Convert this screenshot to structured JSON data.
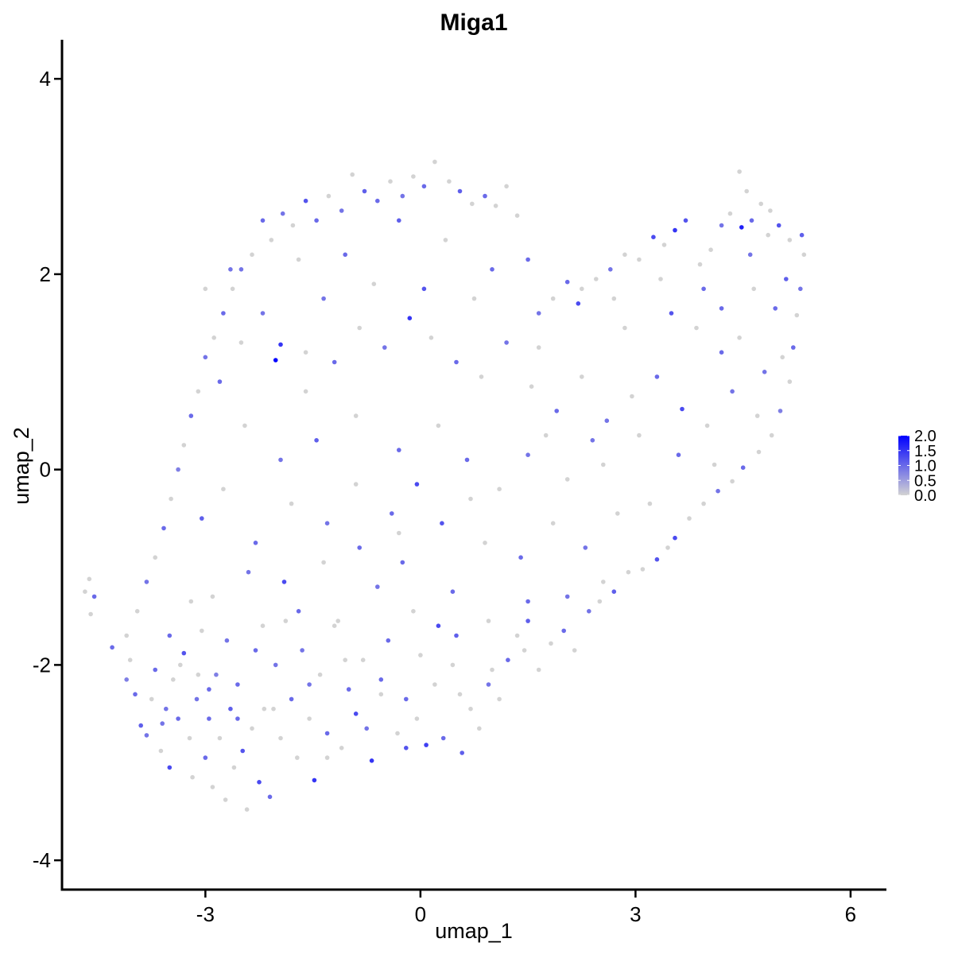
{
  "chart_data": {
    "type": "scatter",
    "title": "Miga1",
    "xlabel": "umap_1",
    "ylabel": "umap_2",
    "xlim": [
      -5.0,
      6.5
    ],
    "ylim": [
      -4.3,
      4.4
    ],
    "xticks": [
      -3,
      0,
      3,
      6
    ],
    "yticks": [
      -4,
      -2,
      0,
      2,
      4
    ],
    "xtick_labels": [
      "-3",
      "0",
      "3",
      "6"
    ],
    "ytick_labels": [
      "-4",
      "-2",
      "0",
      "2",
      "4"
    ],
    "grid": false,
    "legend": {
      "placement": "right",
      "title": "",
      "breaks": [
        0.0,
        0.5,
        1.0,
        1.5,
        2.0
      ],
      "break_labels": [
        "0.0",
        "0.5",
        "1.0",
        "1.5",
        "2.0"
      ],
      "range": [
        0.0,
        2.0
      ]
    },
    "color_low": "#D3D3D3",
    "color_high": "#0000FF",
    "points": [
      [
        -4.68,
        -1.25,
        0.0
      ],
      [
        -4.62,
        -1.12,
        0.0
      ],
      [
        -4.55,
        -1.3,
        1.0
      ],
      [
        -4.6,
        -1.48,
        0.0
      ],
      [
        -4.3,
        -1.82,
        1.0
      ],
      [
        -4.1,
        -2.15,
        0.8
      ],
      [
        -4.05,
        -1.95,
        0.0
      ],
      [
        -3.98,
        -2.3,
        1.0
      ],
      [
        -3.9,
        -2.62,
        1.1
      ],
      [
        -3.82,
        -2.72,
        0.9
      ],
      [
        -3.75,
        -2.35,
        0.0
      ],
      [
        -3.7,
        -2.05,
        1.0
      ],
      [
        -3.62,
        -2.88,
        0.0
      ],
      [
        -3.55,
        -2.45,
        0.9
      ],
      [
        -3.5,
        -3.05,
        1.3
      ],
      [
        -3.45,
        -2.15,
        0.0
      ],
      [
        -3.38,
        -2.55,
        1.0
      ],
      [
        -3.3,
        -1.88,
        1.2
      ],
      [
        -3.22,
        -2.75,
        0.0
      ],
      [
        -3.18,
        -3.15,
        0.0
      ],
      [
        -3.12,
        -2.35,
        0.9
      ],
      [
        -3.05,
        -1.65,
        0.0
      ],
      [
        -3.0,
        -2.95,
        1.0
      ],
      [
        -2.95,
        -2.55,
        1.0
      ],
      [
        -2.9,
        -3.25,
        0.0
      ],
      [
        -2.85,
        -2.1,
        0.8
      ],
      [
        -2.8,
        -2.75,
        0.0
      ],
      [
        -2.72,
        -3.38,
        0.0
      ],
      [
        -2.65,
        -2.45,
        1.1
      ],
      [
        -2.6,
        -3.05,
        0.0
      ],
      [
        -2.55,
        -2.2,
        1.0
      ],
      [
        -2.48,
        -2.88,
        1.2
      ],
      [
        -2.42,
        -3.48,
        0.0
      ],
      [
        -2.35,
        -2.65,
        0.0
      ],
      [
        -2.3,
        -1.85,
        1.0
      ],
      [
        -2.25,
        -3.2,
        1.3
      ],
      [
        -2.18,
        -2.45,
        0.0
      ],
      [
        -2.1,
        -3.35,
        1.0
      ],
      [
        -2.02,
        -2.0,
        0.9
      ],
      [
        -1.95,
        -2.75,
        0.0
      ],
      [
        -1.88,
        -1.55,
        0.0
      ],
      [
        -1.8,
        -2.35,
        1.0
      ],
      [
        -1.72,
        -2.95,
        0.0
      ],
      [
        -1.65,
        -1.85,
        0.9
      ],
      [
        -1.55,
        -2.55,
        0.0
      ],
      [
        -1.48,
        -3.18,
        1.5
      ],
      [
        -1.4,
        -2.1,
        0.0
      ],
      [
        -1.3,
        -2.7,
        1.0
      ],
      [
        -1.2,
        -1.6,
        0.0
      ],
      [
        -1.1,
        -2.85,
        0.0
      ],
      [
        -1.0,
        -2.25,
        1.0
      ],
      [
        -0.9,
        -2.5,
        1.3
      ],
      [
        -0.8,
        -1.95,
        0.0
      ],
      [
        -0.68,
        -2.98,
        1.5
      ],
      [
        -0.55,
        -2.3,
        0.0
      ],
      [
        -0.45,
        -1.75,
        1.0
      ],
      [
        -0.32,
        -2.7,
        0.0
      ],
      [
        -0.2,
        -2.85,
        1.2
      ],
      [
        -0.05,
        -2.55,
        0.0
      ],
      [
        0.08,
        -2.82,
        1.4
      ],
      [
        0.2,
        -2.2,
        0.0
      ],
      [
        0.32,
        -2.75,
        1.0
      ],
      [
        0.45,
        -2.0,
        0.0
      ],
      [
        0.58,
        -2.9,
        1.1
      ],
      [
        0.7,
        -2.45,
        0.0
      ],
      [
        0.82,
        -2.65,
        0.0
      ],
      [
        0.95,
        -2.2,
        0.9
      ],
      [
        1.1,
        -2.35,
        0.0
      ],
      [
        1.22,
        -1.95,
        1.0
      ],
      [
        1.35,
        -1.7,
        0.0
      ],
      [
        1.5,
        -1.55,
        1.1
      ],
      [
        1.65,
        -2.05,
        0.0
      ],
      [
        1.82,
        -1.78,
        0.0
      ],
      [
        2.0,
        -1.65,
        1.0
      ],
      [
        2.15,
        -1.85,
        0.0
      ],
      [
        2.35,
        -1.45,
        0.9
      ],
      [
        2.5,
        -1.35,
        0.0
      ],
      [
        2.7,
        -1.25,
        1.1
      ],
      [
        2.9,
        -1.05,
        0.0
      ],
      [
        3.1,
        -1.02,
        0.0
      ],
      [
        3.3,
        -0.92,
        1.2
      ],
      [
        3.45,
        -0.8,
        0.0
      ],
      [
        3.55,
        -0.7,
        1.3
      ],
      [
        3.75,
        -0.5,
        0.0
      ],
      [
        3.95,
        -0.35,
        0.0
      ],
      [
        4.15,
        -0.22,
        0.9
      ],
      [
        4.35,
        -0.12,
        0.0
      ],
      [
        4.5,
        0.02,
        1.0
      ],
      [
        4.72,
        0.18,
        0.0
      ],
      [
        4.9,
        0.35,
        0.0
      ],
      [
        5.02,
        0.6,
        0.8
      ],
      [
        5.15,
        0.9,
        0.0
      ],
      [
        5.2,
        1.25,
        1.0
      ],
      [
        5.25,
        1.58,
        0.0
      ],
      [
        5.3,
        1.85,
        0.9
      ],
      [
        5.35,
        2.2,
        0.0
      ],
      [
        5.32,
        2.4,
        1.1
      ],
      [
        5.15,
        2.35,
        0.0
      ],
      [
        5.0,
        2.5,
        1.2
      ],
      [
        4.88,
        2.65,
        0.0
      ],
      [
        4.75,
        2.72,
        0.0
      ],
      [
        4.62,
        2.55,
        1.0
      ],
      [
        4.55,
        2.85,
        0.0
      ],
      [
        4.48,
        2.48,
        1.7
      ],
      [
        4.45,
        3.05,
        0.0
      ],
      [
        4.32,
        2.62,
        0.0
      ],
      [
        4.2,
        2.5,
        0.9
      ],
      [
        4.05,
        2.25,
        0.0
      ],
      [
        3.9,
        2.1,
        0.0
      ],
      [
        3.7,
        2.55,
        1.2
      ],
      [
        3.55,
        2.45,
        1.5
      ],
      [
        3.4,
        2.3,
        0.0
      ],
      [
        3.25,
        2.38,
        1.3
      ],
      [
        3.05,
        2.15,
        0.0
      ],
      [
        2.85,
        2.2,
        0.0
      ],
      [
        2.65,
        2.05,
        0.9
      ],
      [
        2.45,
        1.95,
        0.0
      ],
      [
        2.25,
        1.85,
        0.0
      ],
      [
        2.05,
        1.92,
        1.0
      ],
      [
        1.85,
        1.75,
        0.0
      ],
      [
        1.65,
        1.6,
        0.9
      ],
      [
        1.5,
        2.15,
        1.0
      ],
      [
        1.35,
        2.6,
        0.0
      ],
      [
        1.2,
        2.9,
        0.0
      ],
      [
        1.05,
        2.7,
        0.0
      ],
      [
        0.9,
        2.8,
        1.0
      ],
      [
        0.72,
        2.72,
        0.0
      ],
      [
        0.55,
        2.85,
        1.1
      ],
      [
        0.4,
        2.95,
        0.0
      ],
      [
        0.2,
        3.15,
        0.0
      ],
      [
        0.05,
        2.9,
        1.0
      ],
      [
        -0.1,
        3.0,
        0.0
      ],
      [
        -0.25,
        2.8,
        0.9
      ],
      [
        -0.42,
        2.95,
        0.0
      ],
      [
        -0.6,
        2.75,
        1.0
      ],
      [
        -0.78,
        2.85,
        1.1
      ],
      [
        -0.95,
        3.02,
        0.0
      ],
      [
        -1.1,
        2.65,
        0.9
      ],
      [
        -1.28,
        2.8,
        0.0
      ],
      [
        -1.45,
        2.55,
        1.0
      ],
      [
        -1.6,
        2.75,
        1.2
      ],
      [
        -1.78,
        2.5,
        0.0
      ],
      [
        -1.92,
        2.62,
        0.9
      ],
      [
        -2.08,
        2.35,
        0.0
      ],
      [
        -2.2,
        2.55,
        1.0
      ],
      [
        -2.35,
        2.2,
        0.0
      ],
      [
        -2.5,
        2.05,
        0.9
      ],
      [
        -2.62,
        1.85,
        0.0
      ],
      [
        -2.75,
        1.6,
        1.0
      ],
      [
        -2.88,
        1.35,
        0.0
      ],
      [
        -3.0,
        1.15,
        0.9
      ],
      [
        -3.1,
        0.8,
        0.0
      ],
      [
        -3.2,
        0.55,
        1.0
      ],
      [
        -3.3,
        0.25,
        0.0
      ],
      [
        -3.38,
        0.0,
        0.8
      ],
      [
        -3.48,
        -0.3,
        0.0
      ],
      [
        -3.58,
        -0.6,
        1.0
      ],
      [
        -3.7,
        -0.9,
        0.0
      ],
      [
        -3.82,
        -1.15,
        0.9
      ],
      [
        -3.95,
        -1.45,
        0.0
      ],
      [
        -2.02,
        1.12,
        2.0
      ],
      [
        -1.95,
        1.28,
        1.5
      ],
      [
        -2.2,
        1.6,
        0.9
      ],
      [
        -1.6,
        0.8,
        0.0
      ],
      [
        -1.2,
        1.1,
        1.0
      ],
      [
        -0.85,
        1.45,
        0.0
      ],
      [
        -0.5,
        1.25,
        0.9
      ],
      [
        -0.15,
        1.55,
        1.5
      ],
      [
        0.15,
        1.35,
        0.0
      ],
      [
        0.5,
        1.1,
        1.0
      ],
      [
        0.85,
        0.95,
        0.0
      ],
      [
        1.2,
        1.3,
        0.9
      ],
      [
        1.55,
        0.85,
        0.0
      ],
      [
        1.9,
        0.6,
        1.0
      ],
      [
        2.25,
        0.95,
        0.0
      ],
      [
        2.6,
        0.5,
        0.9
      ],
      [
        2.95,
        0.75,
        0.0
      ],
      [
        3.3,
        0.95,
        1.0
      ],
      [
        3.65,
        0.62,
        1.3
      ],
      [
        4.0,
        0.45,
        0.0
      ],
      [
        4.35,
        0.8,
        0.9
      ],
      [
        4.7,
        0.55,
        0.0
      ],
      [
        3.85,
        1.45,
        0.0
      ],
      [
        4.2,
        1.2,
        1.0
      ],
      [
        3.5,
        1.6,
        1.2
      ],
      [
        2.85,
        1.45,
        0.0
      ],
      [
        2.2,
        1.7,
        1.3
      ],
      [
        1.65,
        1.25,
        0.0
      ],
      [
        0.75,
        1.75,
        0.0
      ],
      [
        0.05,
        1.85,
        1.2
      ],
      [
        -0.65,
        1.9,
        0.0
      ],
      [
        -1.35,
        1.75,
        0.9
      ],
      [
        -2.5,
        1.3,
        0.0
      ],
      [
        -2.8,
        0.9,
        1.0
      ],
      [
        -2.45,
        0.45,
        0.0
      ],
      [
        -1.95,
        0.1,
        0.9
      ],
      [
        -1.45,
        0.3,
        1.1
      ],
      [
        -0.9,
        0.55,
        0.0
      ],
      [
        -0.3,
        0.2,
        1.0
      ],
      [
        0.25,
        0.45,
        0.0
      ],
      [
        0.65,
        0.1,
        1.0
      ],
      [
        1.1,
        -0.2,
        0.0
      ],
      [
        1.5,
        0.15,
        0.9
      ],
      [
        2.05,
        -0.1,
        0.0
      ],
      [
        2.55,
        0.05,
        0.0
      ],
      [
        -0.05,
        -0.15,
        1.3
      ],
      [
        -0.4,
        -0.45,
        1.0
      ],
      [
        -0.9,
        -0.15,
        0.0
      ],
      [
        -1.3,
        -0.55,
        0.9
      ],
      [
        -1.8,
        -0.35,
        0.0
      ],
      [
        -2.3,
        -0.75,
        1.0
      ],
      [
        -2.75,
        -0.2,
        0.0
      ],
      [
        -3.05,
        -0.5,
        1.1
      ],
      [
        -2.9,
        -1.3,
        0.0
      ],
      [
        -2.4,
        -1.05,
        0.9
      ],
      [
        -1.9,
        -1.15,
        1.3
      ],
      [
        -1.35,
        -0.95,
        0.0
      ],
      [
        -0.85,
        -0.8,
        1.0
      ],
      [
        -0.3,
        -0.65,
        0.0
      ],
      [
        0.3,
        -0.55,
        1.2
      ],
      [
        0.9,
        -0.75,
        0.0
      ],
      [
        1.4,
        -0.9,
        1.0
      ],
      [
        1.85,
        -0.55,
        0.0
      ],
      [
        2.3,
        -0.8,
        0.9
      ],
      [
        2.75,
        -0.45,
        0.0
      ],
      [
        3.2,
        -0.35,
        0.0
      ],
      [
        2.55,
        -1.15,
        0.0
      ],
      [
        2.05,
        -1.3,
        0.9
      ],
      [
        1.5,
        -1.35,
        1.0
      ],
      [
        0.95,
        -1.55,
        0.0
      ],
      [
        0.45,
        -1.25,
        1.0
      ],
      [
        -0.1,
        -1.45,
        0.0
      ],
      [
        -0.6,
        -1.2,
        0.9
      ],
      [
        -1.15,
        -1.55,
        0.0
      ],
      [
        -1.7,
        -1.45,
        1.0
      ],
      [
        -2.2,
        -1.6,
        0.0
      ],
      [
        -2.7,
        -1.75,
        0.9
      ],
      [
        -3.2,
        -1.35,
        0.0
      ],
      [
        -3.5,
        -1.7,
        1.0
      ],
      [
        -3.1,
        -2.1,
        0.0
      ],
      [
        -2.55,
        -2.55,
        1.0
      ],
      [
        -2.05,
        -2.45,
        0.0
      ],
      [
        -1.55,
        -2.2,
        0.9
      ],
      [
        -1.05,
        -1.95,
        0.0
      ],
      [
        -0.55,
        -2.15,
        1.0
      ],
      [
        0.0,
        -1.9,
        0.0
      ],
      [
        0.5,
        -1.7,
        1.1
      ],
      [
        1.0,
        -2.05,
        0.0
      ],
      [
        1.45,
        -1.85,
        0.0
      ],
      [
        0.25,
        -1.6,
        1.3
      ],
      [
        -0.25,
        -0.95,
        1.0
      ],
      [
        0.7,
        -0.3,
        0.0
      ],
      [
        -1.6,
        1.2,
        0.0
      ],
      [
        -1.05,
        2.2,
        1.0
      ],
      [
        -0.3,
        2.55,
        1.1
      ],
      [
        0.35,
        2.35,
        0.0
      ],
      [
        1.0,
        2.05,
        1.0
      ],
      [
        -1.7,
        2.15,
        0.0
      ],
      [
        -2.65,
        2.05,
        0.9
      ],
      [
        -3.0,
        1.85,
        0.0
      ],
      [
        4.65,
        1.85,
        0.0
      ],
      [
        4.95,
        1.65,
        1.0
      ],
      [
        5.05,
        1.15,
        0.0
      ],
      [
        4.8,
        1.0,
        0.9
      ],
      [
        4.45,
        1.35,
        0.0
      ],
      [
        3.95,
        1.85,
        1.0
      ],
      [
        3.35,
        1.95,
        0.0
      ],
      [
        2.7,
        1.75,
        0.0
      ],
      [
        4.2,
        1.65,
        1.0
      ],
      [
        4.6,
        2.2,
        0.9
      ],
      [
        4.85,
        2.4,
        0.0
      ],
      [
        5.1,
        1.95,
        1.1
      ],
      [
        1.75,
        0.35,
        0.0
      ],
      [
        2.4,
        0.3,
        0.9
      ],
      [
        3.05,
        0.35,
        0.0
      ],
      [
        3.6,
        0.15,
        1.0
      ],
      [
        4.1,
        0.05,
        0.0
      ],
      [
        -1.3,
        -2.95,
        0.0
      ],
      [
        -0.75,
        -2.65,
        0.9
      ],
      [
        -0.2,
        -2.35,
        1.0
      ],
      [
        0.55,
        -2.3,
        0.0
      ],
      [
        -2.95,
        -2.25,
        1.0
      ],
      [
        -3.35,
        -2.0,
        0.0
      ],
      [
        -3.6,
        -2.6,
        0.9
      ],
      [
        -4.1,
        -1.7,
        0.0
      ]
    ]
  }
}
